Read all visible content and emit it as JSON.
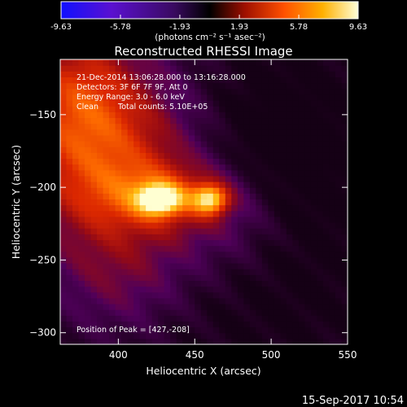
{
  "chart_data": {
    "type": "heatmap",
    "title": "Reconstructed RHESSI Image",
    "xlabel": "Heliocentric X (arcsec)",
    "ylabel": "Heliocentric Y (arcsec)",
    "xlim": [
      362,
      550
    ],
    "ylim": [
      -308,
      -112
    ],
    "xticks": [
      400,
      450,
      500,
      550
    ],
    "yticks": [
      -150,
      -200,
      -250,
      -300
    ],
    "colorbar": {
      "range": [
        -9.63,
        9.63
      ],
      "ticks": [
        "-9.63",
        "-5.78",
        "-1.93",
        "1.93",
        "5.78",
        "9.63"
      ],
      "label": "(photons cm⁻² s⁻¹ asec⁻²)",
      "colors": [
        "#1010ff",
        "#5a10d0",
        "#3a0a60",
        "#000000",
        "#a01000",
        "#ff5000",
        "#ffb000",
        "#ffffd8"
      ]
    },
    "peak": [
      427,
      -208
    ],
    "sources": [
      {
        "x": 427,
        "y": -208,
        "intensity": 9.63
      },
      {
        "x": 460,
        "y": -208,
        "intensity": 9.2
      }
    ]
  },
  "annotations": {
    "time_line": "21-Dec-2014 13:06:28.000 to 13:16:28.000",
    "detectors_line": "Detectors: 3F 6F 7F 9F, Att 0",
    "energy_line": "Energy Range: 3.0 - 6.0 keV",
    "clean_label": "Clean",
    "counts_label": "Total counts: 5.10E+05",
    "peak_label": "Position of Peak = [427,-208]"
  },
  "footer": {
    "timestamp": "15-Sep-2017 10:54"
  }
}
